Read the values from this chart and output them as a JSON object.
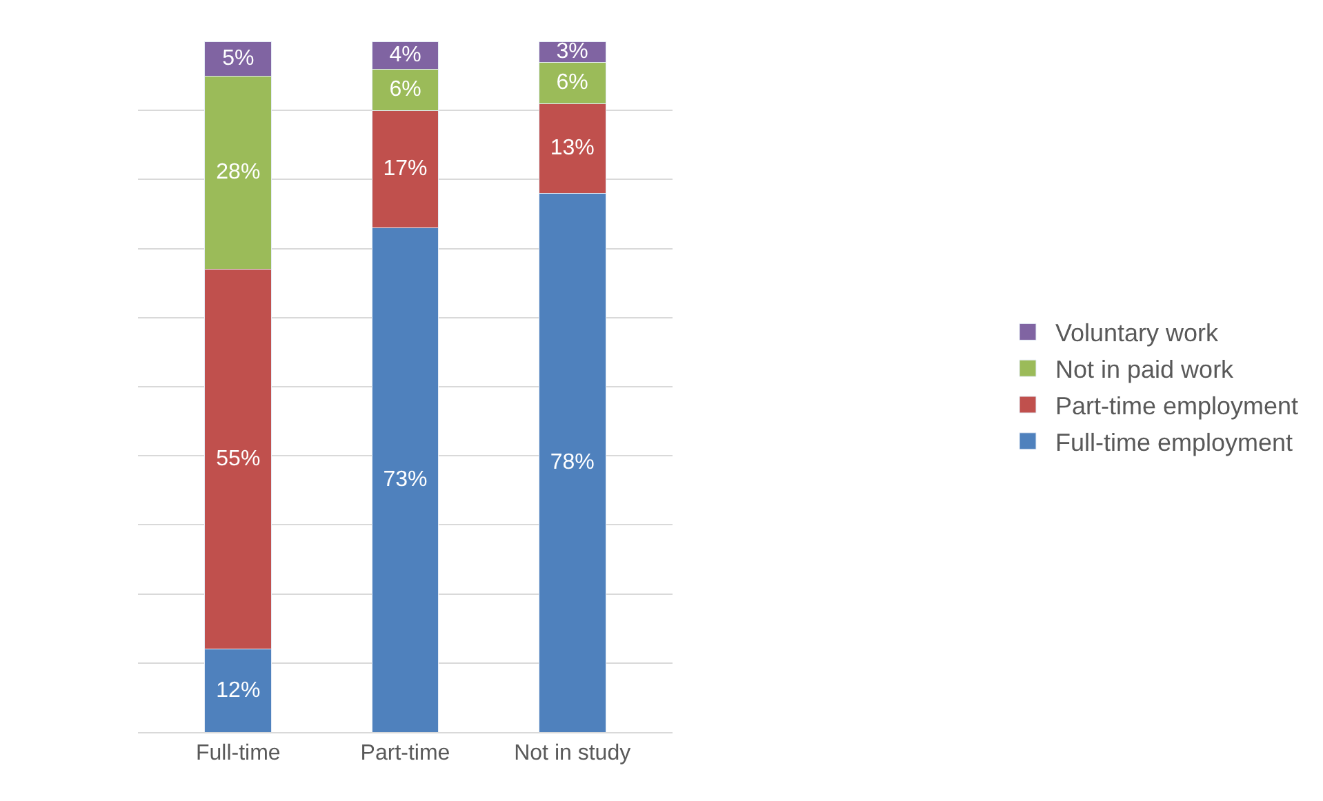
{
  "chart_data": {
    "type": "bar",
    "stacked": true,
    "categories": [
      "Full-time",
      "Part-time",
      "Not in study"
    ],
    "series": [
      {
        "name": "Full-time employment",
        "color": "#4f81bd",
        "values": [
          12,
          73,
          78
        ],
        "value_labels": [
          "12%",
          "73%",
          "78%"
        ]
      },
      {
        "name": "Part-time employment",
        "color": "#c0504d",
        "values": [
          55,
          17,
          13
        ],
        "value_labels": [
          "55%",
          "17%",
          "13%"
        ]
      },
      {
        "name": "Not in paid work",
        "color": "#9bbb59",
        "values": [
          28,
          6,
          6
        ],
        "value_labels": [
          "28%",
          "6%",
          "6%"
        ]
      },
      {
        "name": "Voluntary work",
        "color": "#8064a2",
        "values": [
          5,
          4,
          3
        ],
        "value_labels": [
          "5%",
          "4%",
          "3%"
        ]
      }
    ],
    "ylim": [
      0,
      100
    ],
    "yticks": [
      {
        "value": 10,
        "label": null
      },
      {
        "value": 20,
        "label": null
      },
      {
        "value": 30,
        "label": null
      },
      {
        "value": 40,
        "label": null
      },
      {
        "value": 50,
        "label": null
      },
      {
        "value": 60,
        "label": null
      },
      {
        "value": 70,
        "label": null
      },
      {
        "value": 80,
        "label": null
      },
      {
        "value": 90,
        "label": null
      }
    ],
    "tick_labels": "x",
    "grid": "y",
    "legend": "right"
  }
}
